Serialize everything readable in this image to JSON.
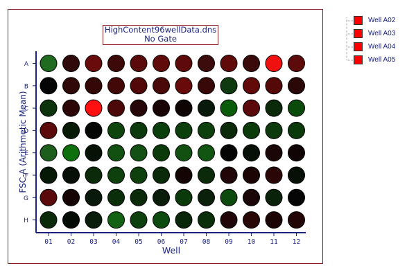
{
  "chart_data": {
    "type": "heatmap",
    "title": "HighContent96wellData.dns",
    "subtitle": "No Gate",
    "xlabel": "Well",
    "ylabel": "FSC-A (Arithmetic Mean)",
    "columns": [
      "01",
      "02",
      "03",
      "04",
      "05",
      "06",
      "07",
      "08",
      "09",
      "10",
      "11",
      "12"
    ],
    "rows": [
      "A",
      "B",
      "C",
      "D",
      "E",
      "F",
      "G",
      "H"
    ],
    "well_colors": [
      [
        "#1f6b1f",
        "#300a0a",
        "#6a0b0b",
        "#3c0808",
        "#5a0a0a",
        "#600a0a",
        "#5e0a0a",
        "#3c0b0b",
        "#600a0a",
        "#3a0a0a",
        "#f01010",
        "#5c0a0a"
      ],
      [
        "#050505",
        "#300808",
        "#350808",
        "#420808",
        "#520808",
        "#4a0808",
        "#680a0a",
        "#380808",
        "#0f3a0f",
        "#620a0a",
        "#540808",
        "#2a0808"
      ],
      [
        "#0d330d",
        "#2c0606",
        "#ff1010",
        "#4c0808",
        "#260606",
        "#180404",
        "#0e0404",
        "#0a1a0a",
        "#0a5c0a",
        "#5a0a0a",
        "#0a2a0a",
        "#0a4a0a"
      ],
      [
        "#5c0a0a",
        "#061a06",
        "#040704",
        "#0d450d",
        "#0d3a0d",
        "#0a3e0a",
        "#0d3f0d",
        "#0d400d",
        "#0a2a0a",
        "#0a3a0a",
        "#0d3a0d",
        "#0a3a0a"
      ],
      [
        "#1d5e1d",
        "#0d700d",
        "#061206",
        "#125012",
        "#135013",
        "#0a3a0a",
        "#125012",
        "#125412",
        "#040404",
        "#061006",
        "#1a0606",
        "#100404"
      ],
      [
        "#061806",
        "#061006",
        "#0a2a0a",
        "#0d400d",
        "#0d400d",
        "#0a2a0a",
        "#140404",
        "#0a2a0a",
        "#200606",
        "#1c0404",
        "#2a0606",
        "#061006"
      ],
      [
        "#5a0a0a",
        "#160404",
        "#0a1a0a",
        "#0a2e0a",
        "#0a2a0a",
        "#0a1c0a",
        "#0a3a0a",
        "#0a200a",
        "#0d4a0d",
        "#1a0606",
        "#0a220a",
        "#060606"
      ],
      [
        "#0a2a0a",
        "#040a04",
        "#0a1c0a",
        "#136213",
        "#0d400d",
        "#0d4a0d",
        "#0a260a",
        "#0a2e0a",
        "#200606",
        "#280606",
        "#1c0404",
        "#220606"
      ]
    ],
    "legend": [
      "Well A02",
      "Well A03",
      "Well A04",
      "Well A05"
    ],
    "legend_color": "#ff0000",
    "grid": false
  }
}
